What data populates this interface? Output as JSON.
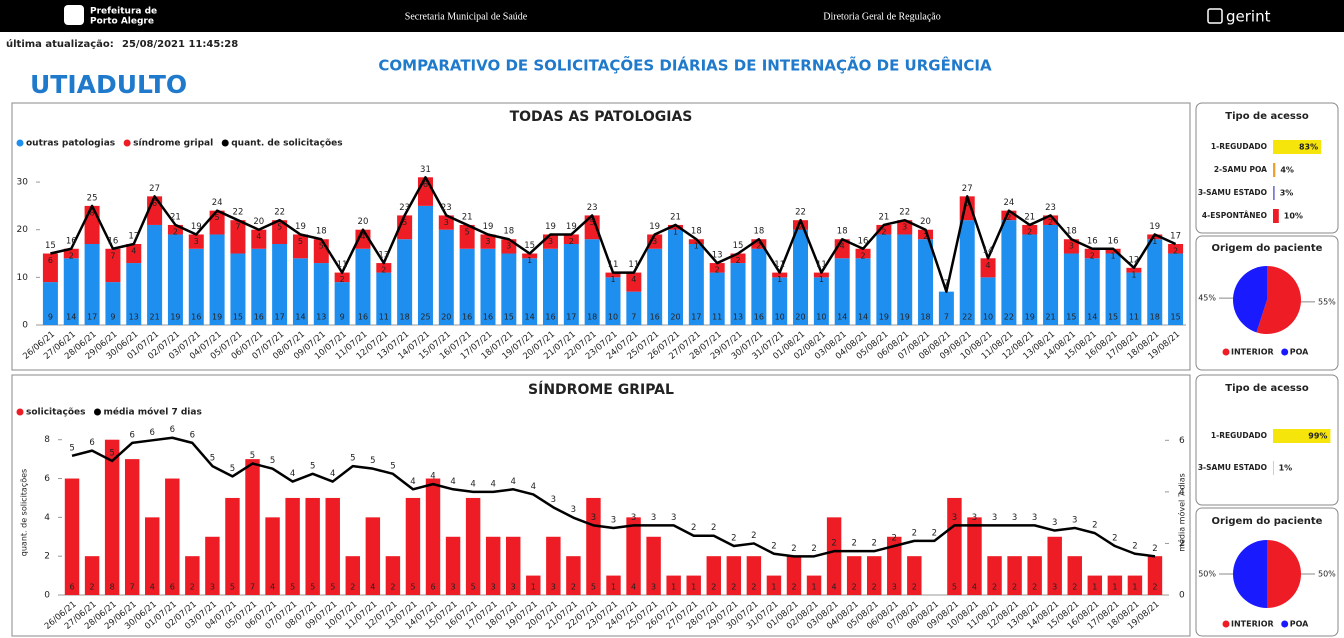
{
  "header": {
    "logo_line1": "Prefeitura de",
    "logo_line2": "Porto Alegre",
    "center1": "Secretaria Municipal de Saúde",
    "center2": "Diretoria Geral de Regulação",
    "brand": "gerint"
  },
  "last_update": {
    "label": "última atualização:",
    "value": "25/08/2021 11:45:28"
  },
  "unit": "UTIADULTO",
  "title": "COMPARATIVO DE SOLICITAÇÕES DIÁRIAS DE INTERNAÇÃO DE URGÊNCIA",
  "chart_data": [
    {
      "type": "combo",
      "title": "TODAS AS PATOLOGIAS",
      "categories": [
        "26/06/21",
        "27/06/21",
        "28/06/21",
        "29/06/21",
        "30/06/21",
        "01/07/21",
        "02/07/21",
        "03/07/21",
        "04/07/21",
        "05/07/21",
        "06/07/21",
        "07/07/21",
        "08/07/21",
        "09/07/21",
        "10/07/21",
        "11/07/21",
        "12/07/21",
        "13/07/21",
        "14/07/21",
        "15/07/21",
        "16/07/21",
        "17/07/21",
        "18/07/21",
        "19/07/21",
        "20/07/21",
        "21/07/21",
        "22/07/21",
        "23/07/21",
        "24/07/21",
        "25/07/21",
        "26/07/21",
        "27/07/21",
        "28/07/21",
        "29/07/21",
        "30/07/21",
        "31/07/21",
        "01/08/21",
        "02/08/21",
        "03/08/21",
        "04/08/21",
        "05/08/21",
        "06/08/21",
        "07/08/21",
        "08/08/21",
        "09/08/21",
        "10/08/21",
        "11/08/21",
        "12/08/21",
        "13/08/21",
        "14/08/21",
        "15/08/21",
        "16/08/21",
        "17/08/21",
        "18/08/21",
        "19/08/21"
      ],
      "series": [
        {
          "name": "outras patologias",
          "type": "bar",
          "color": "#1f8fef",
          "values": [
            9,
            14,
            17,
            9,
            13,
            21,
            19,
            16,
            19,
            15,
            16,
            17,
            14,
            13,
            9,
            16,
            11,
            18,
            25,
            20,
            16,
            16,
            15,
            14,
            16,
            17,
            18,
            10,
            7,
            16,
            20,
            17,
            11,
            13,
            16,
            10,
            20,
            10,
            14,
            14,
            19,
            19,
            18,
            7,
            22,
            10,
            22,
            19,
            21,
            15,
            14,
            15,
            11,
            18,
            15
          ]
        },
        {
          "name": "síndrome gripal",
          "type": "bar",
          "color": "#ee1c25",
          "values": [
            6,
            2,
            8,
            7,
            4,
            6,
            2,
            3,
            5,
            7,
            4,
            5,
            5,
            5,
            2,
            4,
            2,
            5,
            6,
            3,
            5,
            3,
            3,
            1,
            3,
            2,
            5,
            1,
            4,
            3,
            1,
            1,
            2,
            2,
            2,
            1,
            2,
            1,
            4,
            2,
            2,
            3,
            2,
            null,
            5,
            4,
            2,
            2,
            2,
            3,
            2,
            1,
            1,
            1,
            2
          ]
        },
        {
          "name": "quant. de solicitações",
          "type": "line",
          "color": "#000000",
          "values": [
            15,
            16,
            25,
            16,
            17,
            27,
            21,
            19,
            24,
            22,
            20,
            22,
            19,
            18,
            11,
            20,
            13,
            23,
            31,
            23,
            21,
            19,
            18,
            15,
            19,
            19,
            23,
            11,
            11,
            19,
            21,
            18,
            13,
            15,
            18,
            11,
            22,
            11,
            18,
            16,
            21,
            22,
            20,
            7,
            27,
            14,
            24,
            21,
            23,
            18,
            16,
            16,
            12,
            19,
            17
          ]
        }
      ],
      "ylim": [
        0,
        34
      ],
      "yticks": [
        0,
        10,
        20,
        30
      ]
    },
    {
      "type": "combo",
      "title": "SÍNDROME GRIPAL",
      "ylabel": "quant. de solicitações",
      "y2label": "média móvel 7 dias",
      "categories": [
        "26/06/21",
        "27/06/21",
        "28/06/21",
        "29/06/21",
        "30/06/21",
        "01/07/21",
        "02/07/21",
        "03/07/21",
        "04/07/21",
        "05/07/21",
        "06/07/21",
        "07/07/21",
        "08/07/21",
        "09/07/21",
        "10/07/21",
        "11/07/21",
        "12/07/21",
        "13/07/21",
        "14/07/21",
        "15/07/21",
        "16/07/21",
        "17/07/21",
        "18/07/21",
        "19/07/21",
        "20/07/21",
        "21/07/21",
        "22/07/21",
        "23/07/21",
        "24/07/21",
        "25/07/21",
        "26/07/21",
        "27/07/21",
        "28/07/21",
        "29/07/21",
        "30/07/21",
        "31/07/21",
        "01/08/21",
        "02/08/21",
        "03/08/21",
        "04/08/21",
        "05/08/21",
        "06/08/21",
        "07/08/21",
        "08/08/21",
        "09/08/21",
        "10/08/21",
        "11/08/21",
        "12/08/21",
        "13/08/21",
        "14/08/21",
        "15/08/21",
        "16/08/21",
        "17/08/21",
        "18/08/21",
        "19/08/21"
      ],
      "series": [
        {
          "name": "solicitações",
          "type": "bar",
          "color": "#ee1c25",
          "values": [
            6,
            2,
            8,
            7,
            4,
            6,
            2,
            3,
            5,
            7,
            4,
            5,
            5,
            5,
            2,
            4,
            2,
            5,
            6,
            3,
            5,
            3,
            3,
            1,
            3,
            2,
            5,
            1,
            4,
            3,
            1,
            1,
            2,
            2,
            2,
            1,
            2,
            1,
            4,
            2,
            2,
            3,
            2,
            null,
            5,
            4,
            2,
            2,
            2,
            3,
            2,
            1,
            1,
            1,
            2
          ]
        },
        {
          "name": "média móvel 7 dias",
          "type": "line",
          "axis": "y2",
          "color": "#000000",
          "values": [
            5.4,
            5.6,
            5.2,
            5.9,
            6.0,
            6.1,
            5.9,
            5.0,
            4.6,
            5.1,
            4.9,
            4.4,
            4.7,
            4.4,
            5.0,
            4.9,
            4.7,
            4.1,
            4.3,
            4.1,
            4.0,
            4.0,
            4.1,
            3.9,
            3.4,
            3.0,
            2.7,
            2.6,
            2.7,
            2.7,
            2.7,
            2.3,
            2.3,
            1.9,
            2.0,
            1.6,
            1.5,
            1.5,
            1.7,
            1.7,
            1.7,
            1.9,
            2.1,
            2.1,
            2.7,
            2.7,
            2.7,
            2.7,
            2.7,
            2.5,
            2.6,
            2.4,
            1.9,
            1.6,
            1.5
          ],
          "value_labels": [
            "5",
            "6",
            "5",
            "6",
            "6",
            "6",
            "6",
            "5",
            "5",
            "5",
            "5",
            "4",
            "5",
            "4",
            "5",
            "5",
            "5",
            "4",
            "4",
            "4",
            "4",
            "4",
            "4",
            "4",
            "3",
            "3",
            "3",
            "3",
            "3",
            "3",
            "3",
            "2",
            "2",
            "2",
            "2",
            "2",
            "2",
            "2",
            "2",
            "2",
            "2",
            "2",
            "2",
            "2",
            "3",
            "3",
            "3",
            "3",
            "3",
            "3",
            "3",
            "2",
            "2",
            "2",
            "2"
          ]
        }
      ],
      "ylim": [
        0,
        8.5
      ],
      "yticks": [
        0,
        2,
        4,
        6,
        8
      ],
      "y2lim": [
        0,
        6.4
      ],
      "y2ticks": [
        0,
        2,
        4,
        6
      ]
    },
    {
      "type": "hbar",
      "title": "Tipo de acesso",
      "categories": [
        "1-REGUDADO",
        "2-SAMU POA",
        "3-SAMU ESTADO",
        "4-ESPONTÂNEO"
      ],
      "colors": [
        "#f5e50a",
        "#f0a030",
        "#7b7bd6",
        "#ee1c25"
      ],
      "values": [
        83,
        4,
        3,
        10
      ],
      "value_labels": [
        "83%",
        "4%",
        "3%",
        "10%"
      ]
    },
    {
      "type": "pie",
      "title": "Origem do paciente",
      "categories": [
        "INTERIOR",
        "POA"
      ],
      "colors": [
        "#ee1c25",
        "#1a1aff"
      ],
      "values": [
        55,
        45
      ],
      "value_labels": [
        "55%",
        "45%"
      ]
    },
    {
      "type": "hbar",
      "title": "Tipo de acesso",
      "categories": [
        "1-REGUDADO",
        "3-SAMU ESTADO"
      ],
      "colors": [
        "#f5e50a",
        "#aaaaaa"
      ],
      "values": [
        99,
        1
      ],
      "value_labels": [
        "99%",
        "1%"
      ]
    },
    {
      "type": "pie",
      "title": "Origem do paciente",
      "categories": [
        "INTERIOR",
        "POA"
      ],
      "colors": [
        "#ee1c25",
        "#1a1aff"
      ],
      "values": [
        50,
        50
      ],
      "value_labels": [
        "50%",
        "50%"
      ]
    }
  ]
}
